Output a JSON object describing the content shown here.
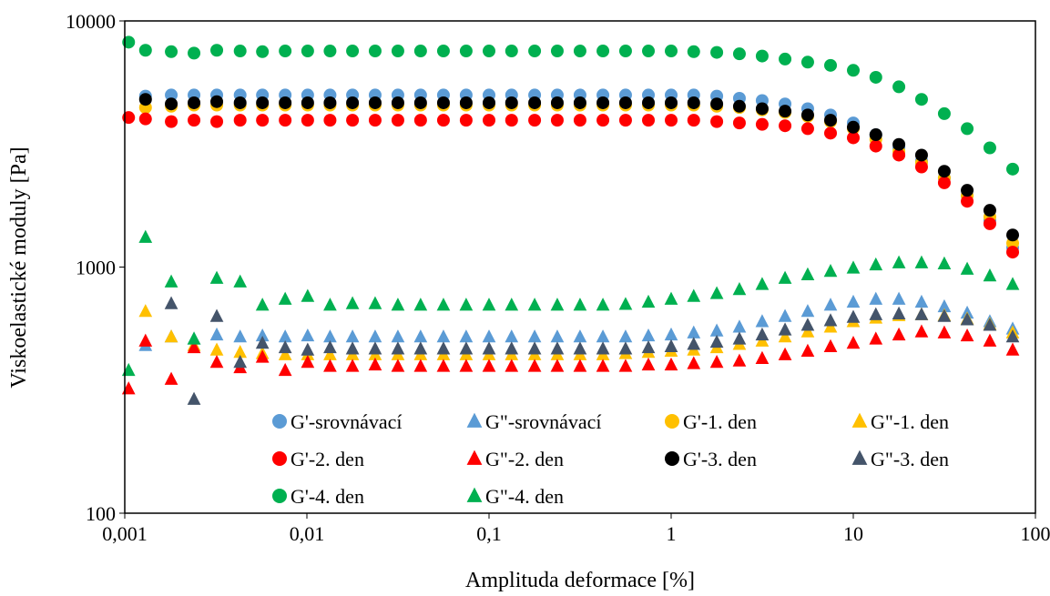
{
  "chart_data": {
    "type": "scatter",
    "title": "",
    "xlabel": "Amplituda deformace [%]",
    "ylabel": "Viskoelastické moduly [Pa]",
    "xscale": "log",
    "yscale": "log",
    "xlim": [
      0.001,
      100
    ],
    "ylim": [
      100,
      10000
    ],
    "x_tick_labels": [
      "0,001",
      "0,01",
      "0,1",
      "1",
      "10",
      "100"
    ],
    "y_tick_labels": [
      "100",
      "1000",
      "10000"
    ],
    "grid": false,
    "legend_position": "bottom-right",
    "x": [
      0.00105,
      0.0013,
      0.0018,
      0.0024,
      0.0032,
      0.0043,
      0.0057,
      0.0076,
      0.0101,
      0.0134,
      0.0178,
      0.0237,
      0.0316,
      0.0421,
      0.0562,
      0.0749,
      0.1,
      0.133,
      0.178,
      0.237,
      0.316,
      0.422,
      0.562,
      0.75,
      1.0,
      1.33,
      1.78,
      2.37,
      3.16,
      4.22,
      5.62,
      7.5,
      10,
      13.3,
      17.8,
      23.7,
      31.6,
      42.2,
      56.2,
      75
    ],
    "series": [
      {
        "name": "G'-srovnávací",
        "marker": "circle",
        "color": "#5B9BD5",
        "values": [
          null,
          4950,
          5000,
          5000,
          5000,
          5000,
          5000,
          5000,
          5000,
          5000,
          5000,
          5000,
          5000,
          5000,
          5000,
          5000,
          5000,
          5000,
          5000,
          5000,
          5000,
          5000,
          5000,
          5000,
          5000,
          5000,
          4950,
          4850,
          4750,
          4600,
          4400,
          4150,
          3850,
          3450,
          3050,
          2700,
          2300,
          1950,
          1550,
          1200
        ]
      },
      {
        "name": "G\"-srovnávací",
        "marker": "triangle",
        "color": "#5B9BD5",
        "values": [
          null,
          480,
          520,
          510,
          530,
          520,
          525,
          520,
          525,
          520,
          520,
          520,
          520,
          520,
          520,
          520,
          520,
          520,
          520,
          520,
          520,
          520,
          520,
          525,
          530,
          540,
          550,
          570,
          600,
          630,
          660,
          700,
          720,
          740,
          740,
          720,
          690,
          650,
          600,
          560
        ]
      },
      {
        "name": "G'-1. den",
        "marker": "circle",
        "color": "#FFC000",
        "values": [
          null,
          4450,
          4500,
          4550,
          4550,
          4550,
          4550,
          4550,
          4550,
          4550,
          4550,
          4550,
          4550,
          4550,
          4550,
          4550,
          4550,
          4550,
          4550,
          4550,
          4550,
          4550,
          4550,
          4550,
          4550,
          4550,
          4500,
          4450,
          4350,
          4250,
          4100,
          3900,
          3650,
          3300,
          2950,
          2650,
          2300,
          1950,
          1600,
          1250
        ]
      },
      {
        "name": "G\"-1. den",
        "marker": "triangle",
        "color": "#FFC000",
        "values": [
          null,
          660,
          520,
          480,
          460,
          450,
          445,
          440,
          440,
          440,
          440,
          440,
          440,
          440,
          440,
          440,
          440,
          440,
          440,
          440,
          440,
          440,
          445,
          450,
          455,
          460,
          470,
          485,
          500,
          520,
          545,
          570,
          600,
          620,
          635,
          640,
          635,
          615,
          585,
          540
        ]
      },
      {
        "name": "G'-2. den",
        "marker": "circle",
        "color": "#FF0000",
        "values": [
          4050,
          4000,
          3900,
          3950,
          3900,
          3950,
          3950,
          3950,
          3950,
          3950,
          3950,
          3950,
          3950,
          3950,
          3950,
          3950,
          3950,
          3950,
          3950,
          3950,
          3950,
          3950,
          3950,
          3950,
          3950,
          3950,
          3900,
          3850,
          3800,
          3750,
          3650,
          3500,
          3350,
          3100,
          2850,
          2550,
          2200,
          1850,
          1500,
          1150
        ]
      },
      {
        "name": "G\"-2. den",
        "marker": "triangle",
        "color": "#FF0000",
        "values": [
          320,
          500,
          350,
          470,
          410,
          390,
          430,
          380,
          410,
          395,
          395,
          400,
          395,
          395,
          395,
          395,
          395,
          395,
          395,
          395,
          395,
          395,
          395,
          400,
          400,
          405,
          410,
          415,
          425,
          440,
          455,
          475,
          490,
          510,
          530,
          545,
          540,
          525,
          500,
          460
        ]
      },
      {
        "name": "G'-3. den",
        "marker": "circle",
        "color": "#000000",
        "values": [
          null,
          4800,
          4600,
          4650,
          4700,
          4650,
          4650,
          4650,
          4650,
          4650,
          4650,
          4650,
          4650,
          4650,
          4650,
          4650,
          4650,
          4650,
          4650,
          4650,
          4650,
          4650,
          4650,
          4650,
          4650,
          4650,
          4600,
          4500,
          4400,
          4300,
          4150,
          3950,
          3700,
          3450,
          3150,
          2850,
          2450,
          2050,
          1700,
          1350
        ]
      },
      {
        "name": "G\"-3. den",
        "marker": "triangle",
        "color": "#44546A",
        "values": [
          null,
          null,
          710,
          290,
          630,
          410,
          490,
          470,
          460,
          470,
          465,
          465,
          465,
          465,
          465,
          465,
          465,
          465,
          465,
          465,
          465,
          465,
          465,
          470,
          475,
          485,
          495,
          510,
          530,
          555,
          580,
          605,
          625,
          640,
          645,
          640,
          630,
          610,
          580,
          520
        ]
      },
      {
        "name": "G'-4. den",
        "marker": "circle",
        "color": "#00B050",
        "values": [
          8200,
          7600,
          7500,
          7400,
          7600,
          7550,
          7500,
          7550,
          7550,
          7550,
          7550,
          7550,
          7550,
          7550,
          7550,
          7550,
          7550,
          7550,
          7550,
          7550,
          7550,
          7550,
          7550,
          7550,
          7550,
          7500,
          7450,
          7350,
          7200,
          7000,
          6800,
          6600,
          6300,
          5900,
          5400,
          4800,
          4200,
          3650,
          3050,
          2500
        ]
      },
      {
        "name": "G\"-4. den",
        "marker": "triangle",
        "color": "#00B050",
        "values": [
          380,
          1320,
          870,
          510,
          900,
          870,
          700,
          740,
          760,
          700,
          710,
          710,
          700,
          700,
          700,
          700,
          700,
          700,
          700,
          700,
          700,
          700,
          705,
          720,
          740,
          760,
          780,
          810,
          850,
          900,
          930,
          960,
          990,
          1020,
          1040,
          1040,
          1030,
          980,
          920,
          850
        ]
      }
    ]
  }
}
